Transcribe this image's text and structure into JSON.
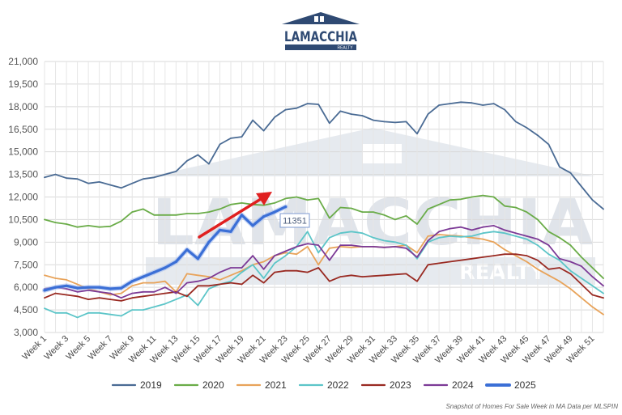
{
  "brand": {
    "name": "LAMACCHIA",
    "sub": "REALTY"
  },
  "watermark": {
    "name": "LAMACCHIA",
    "sub": "REALTY"
  },
  "source_note": "Snapshot of Homes For Sale Week in MA Data per MLSPIN",
  "callout": {
    "label": "11351",
    "series": "2025",
    "week": 24
  },
  "colors": {
    "2019": "#4a6b94",
    "2020": "#6aac48",
    "2021": "#e8a35a",
    "2022": "#5cc5c8",
    "2023": "#992a22",
    "2024": "#7c3a96",
    "2025": "#3b6fd6",
    "arrow": "#e02020"
  },
  "chart_data": {
    "type": "line",
    "title": "",
    "xlabel": "",
    "ylabel": "",
    "ylim": [
      3000,
      21000
    ],
    "y_ticks": [
      "3,000",
      "4,500",
      "6,000",
      "7,500",
      "9,000",
      "10,500",
      "12,000",
      "13,500",
      "15,000",
      "16,500",
      "18,000",
      "19,500",
      "21,000"
    ],
    "x_ticks": [
      "Week 1",
      "Week 3",
      "Week 5",
      "Week 7",
      "Week 9",
      "Week 11",
      "Week 13",
      "Week 15",
      "Week 17",
      "Week 19",
      "Week 21",
      "Week 23",
      "Week 25",
      "Week 27",
      "Week 29",
      "Week 31",
      "Week 33",
      "Week 35",
      "Week 37",
      "Week 39",
      "Week 41",
      "Week 43",
      "Week 45",
      "Week 47",
      "Week 49",
      "Week 51"
    ],
    "grid": true,
    "legend_position": "bottom",
    "series": [
      {
        "name": "2019",
        "values": [
          13300,
          13500,
          13250,
          13200,
          12900,
          13000,
          12800,
          12600,
          12900,
          13200,
          13300,
          13500,
          13700,
          14400,
          14800,
          14200,
          15500,
          15900,
          16000,
          17100,
          16400,
          17300,
          17800,
          17900,
          18200,
          18150,
          16900,
          17700,
          17500,
          17400,
          17100,
          17000,
          16950,
          17000,
          16200,
          17500,
          18100,
          18200,
          18300,
          18250,
          18100,
          18200,
          17800,
          17000,
          16600,
          16100,
          15500,
          14000,
          13600,
          12700,
          11800,
          11200
        ]
      },
      {
        "name": "2020",
        "values": [
          10500,
          10300,
          10200,
          10000,
          10100,
          10000,
          10050,
          10400,
          11000,
          11200,
          10800,
          10800,
          10800,
          10900,
          10900,
          11000,
          11200,
          11500,
          11600,
          11500,
          11450,
          11600,
          11900,
          12000,
          11800,
          11900,
          10600,
          11300,
          11250,
          11000,
          11000,
          10800,
          10500,
          10750,
          10200,
          11200,
          11500,
          11800,
          11850,
          12000,
          12100,
          12000,
          11400,
          11300,
          11000,
          10500,
          9700,
          9300,
          8800,
          8000,
          7300,
          6600
        ]
      },
      {
        "name": "2021",
        "values": [
          6800,
          6600,
          6500,
          6200,
          5900,
          5700,
          5500,
          5600,
          6100,
          6300,
          6300,
          6400,
          5700,
          6900,
          6800,
          6700,
          6500,
          6800,
          7100,
          7500,
          7700,
          8100,
          8300,
          8200,
          8700,
          7500,
          8600,
          8700,
          8650,
          8700,
          8700,
          8650,
          8700,
          8800,
          8300,
          9400,
          9500,
          9450,
          9400,
          9300,
          9200,
          9000,
          8500,
          8100,
          7700,
          7200,
          6800,
          6400,
          5900,
          5300,
          4700,
          4200
        ]
      },
      {
        "name": "2022",
        "values": [
          4600,
          4300,
          4300,
          4000,
          4300,
          4300,
          4200,
          4100,
          4500,
          4500,
          4700,
          4900,
          5200,
          5500,
          4800,
          5900,
          6200,
          6400,
          7000,
          7500,
          6600,
          7600,
          8100,
          8700,
          9700,
          8300,
          9300,
          9600,
          9700,
          9600,
          9300,
          9100,
          9000,
          8800,
          7900,
          9000,
          9300,
          9400,
          9350,
          9400,
          9600,
          9700,
          9600,
          9400,
          9200,
          8800,
          8200,
          7800,
          7100,
          6600,
          6100,
          5600
        ]
      },
      {
        "name": "2023",
        "values": [
          5300,
          5600,
          5500,
          5400,
          5200,
          5300,
          5200,
          5100,
          5300,
          5400,
          5500,
          5600,
          5700,
          5400,
          6100,
          6100,
          6200,
          6300,
          6200,
          6800,
          6300,
          7000,
          7100,
          7100,
          7000,
          7300,
          6400,
          6700,
          6800,
          6700,
          6750,
          6800,
          6850,
          6900,
          6400,
          7500,
          7600,
          7700,
          7800,
          7900,
          8000,
          8100,
          8200,
          8200,
          8100,
          7800,
          7200,
          7300,
          6900,
          6200,
          5500,
          5300
        ]
      },
      {
        "name": "2024",
        "values": [
          5900,
          6000,
          5900,
          5700,
          5800,
          5700,
          5600,
          5300,
          5600,
          5700,
          5700,
          6000,
          5600,
          6300,
          6400,
          6600,
          7000,
          7300,
          7300,
          8100,
          7200,
          8100,
          8400,
          8700,
          8900,
          8800,
          7800,
          8800,
          8800,
          8700,
          8700,
          8650,
          8700,
          8600,
          8000,
          9100,
          9700,
          9900,
          10000,
          9800,
          10000,
          10100,
          9800,
          9600,
          9400,
          9200,
          8800,
          7900,
          7700,
          7400,
          6700,
          6100
        ]
      },
      {
        "name": "2025",
        "values": [
          5800,
          6000,
          6100,
          5950,
          6000,
          6000,
          5900,
          5950,
          6400,
          6700,
          7000,
          7300,
          7700,
          8500,
          7900,
          9000,
          9800,
          9700,
          10800,
          10100,
          10700,
          11000,
          11351
        ]
      }
    ]
  }
}
